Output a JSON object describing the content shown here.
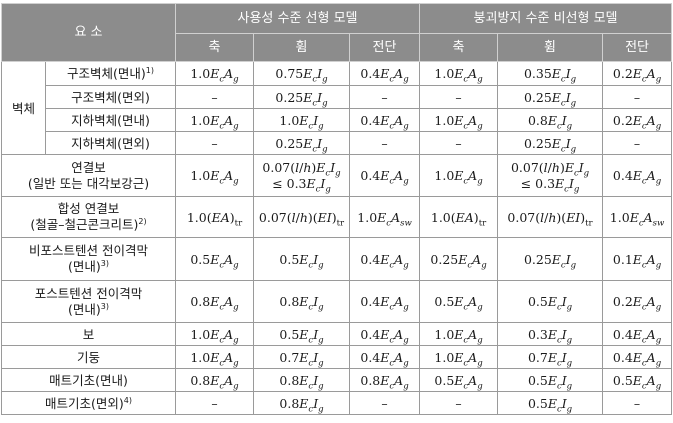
{
  "header": {
    "element": "요 소",
    "group1": "사용성 수준 선형 모델",
    "group2": "붕괴방지 수준 비선형 모델",
    "axial": "축",
    "flexure": "휨",
    "shear": "전단"
  },
  "wall_group": "벽체",
  "wall_rows": [
    {
      "label": "구조벽체(면내)",
      "note": "1)",
      "c": [
        "1.0EcAg",
        "0.75EcIg",
        "0.4EcAg",
        "1.0EcAg",
        "0.35EcIg",
        "0.2EcAg"
      ]
    },
    {
      "label": "구조벽체(면외)",
      "note": "",
      "c": [
        "–",
        "0.25EcIg",
        "–",
        "–",
        "0.25EcIg",
        "–"
      ]
    },
    {
      "label": "지하벽체(면내)",
      "note": "",
      "c": [
        "1.0EcAg",
        "1.0EcIg",
        "0.4EcAg",
        "1.0EcAg",
        "0.8EcIg",
        "0.2EcAg"
      ]
    },
    {
      "label": "지하벽체(면외)",
      "note": "",
      "c": [
        "–",
        "0.25EcIg",
        "–",
        "–",
        "0.25EcIg",
        "–"
      ]
    }
  ],
  "coupling": {
    "label1": "연결보",
    "label2": "(일반 또는 대각보강근)",
    "c": [
      "1.0EcAg",
      "0.07(l/h)EcIg",
      "0.4EcAg",
      "1.0EcAg",
      "0.07(l/h)EcIg",
      "0.4EcAg"
    ],
    "limit": "≤ 0.3EcIg"
  },
  "composite": {
    "label1": "합성 연결보",
    "label2": "(철골–철근콘크리트)",
    "note": "2)",
    "c": [
      "1.0(EA)tr",
      "0.07(l/h)(EI)tr",
      "1.0EcAsw",
      "1.0(EA)tr",
      "0.07(l/h)(EI)tr",
      "1.0EcAsw"
    ]
  },
  "nonpt": {
    "label1": "비포스트텐션 전이격막",
    "label2": "(면내)",
    "note": "3)",
    "c": [
      "0.5EcAg",
      "0.5EcIg",
      "0.4EcAg",
      "0.25EcAg",
      "0.25EcIg",
      "0.1EcAg"
    ]
  },
  "pt": {
    "label1": "포스트텐션 전이격막",
    "label2": "(면내)",
    "note": "3)",
    "c": [
      "0.8EcAg",
      "0.8EcIg",
      "0.4EcAg",
      "0.5EcAg",
      "0.5EcIg",
      "0.2EcAg"
    ]
  },
  "simple_rows": [
    {
      "label": "보",
      "note": "",
      "c": [
        "1.0EcAg",
        "0.5EcIg",
        "0.4EcAg",
        "1.0EcAg",
        "0.3EcIg",
        "0.4EcAg"
      ]
    },
    {
      "label": "기둥",
      "note": "",
      "c": [
        "1.0EcAg",
        "0.7EcIg",
        "0.4EcAg",
        "1.0EcAg",
        "0.7EcIg",
        "0.4EcAg"
      ]
    },
    {
      "label": "매트기초(면내)",
      "note": "",
      "c": [
        "0.8EcAg",
        "0.8EcIg",
        "0.8EcAg",
        "0.5EcAg",
        "0.5EcIg",
        "0.5EcAg"
      ]
    },
    {
      "label": "매트기초(면외)",
      "note": "4)",
      "c": [
        "–",
        "0.8EcIg",
        "–",
        "–",
        "0.5EcIg",
        "–"
      ]
    }
  ]
}
